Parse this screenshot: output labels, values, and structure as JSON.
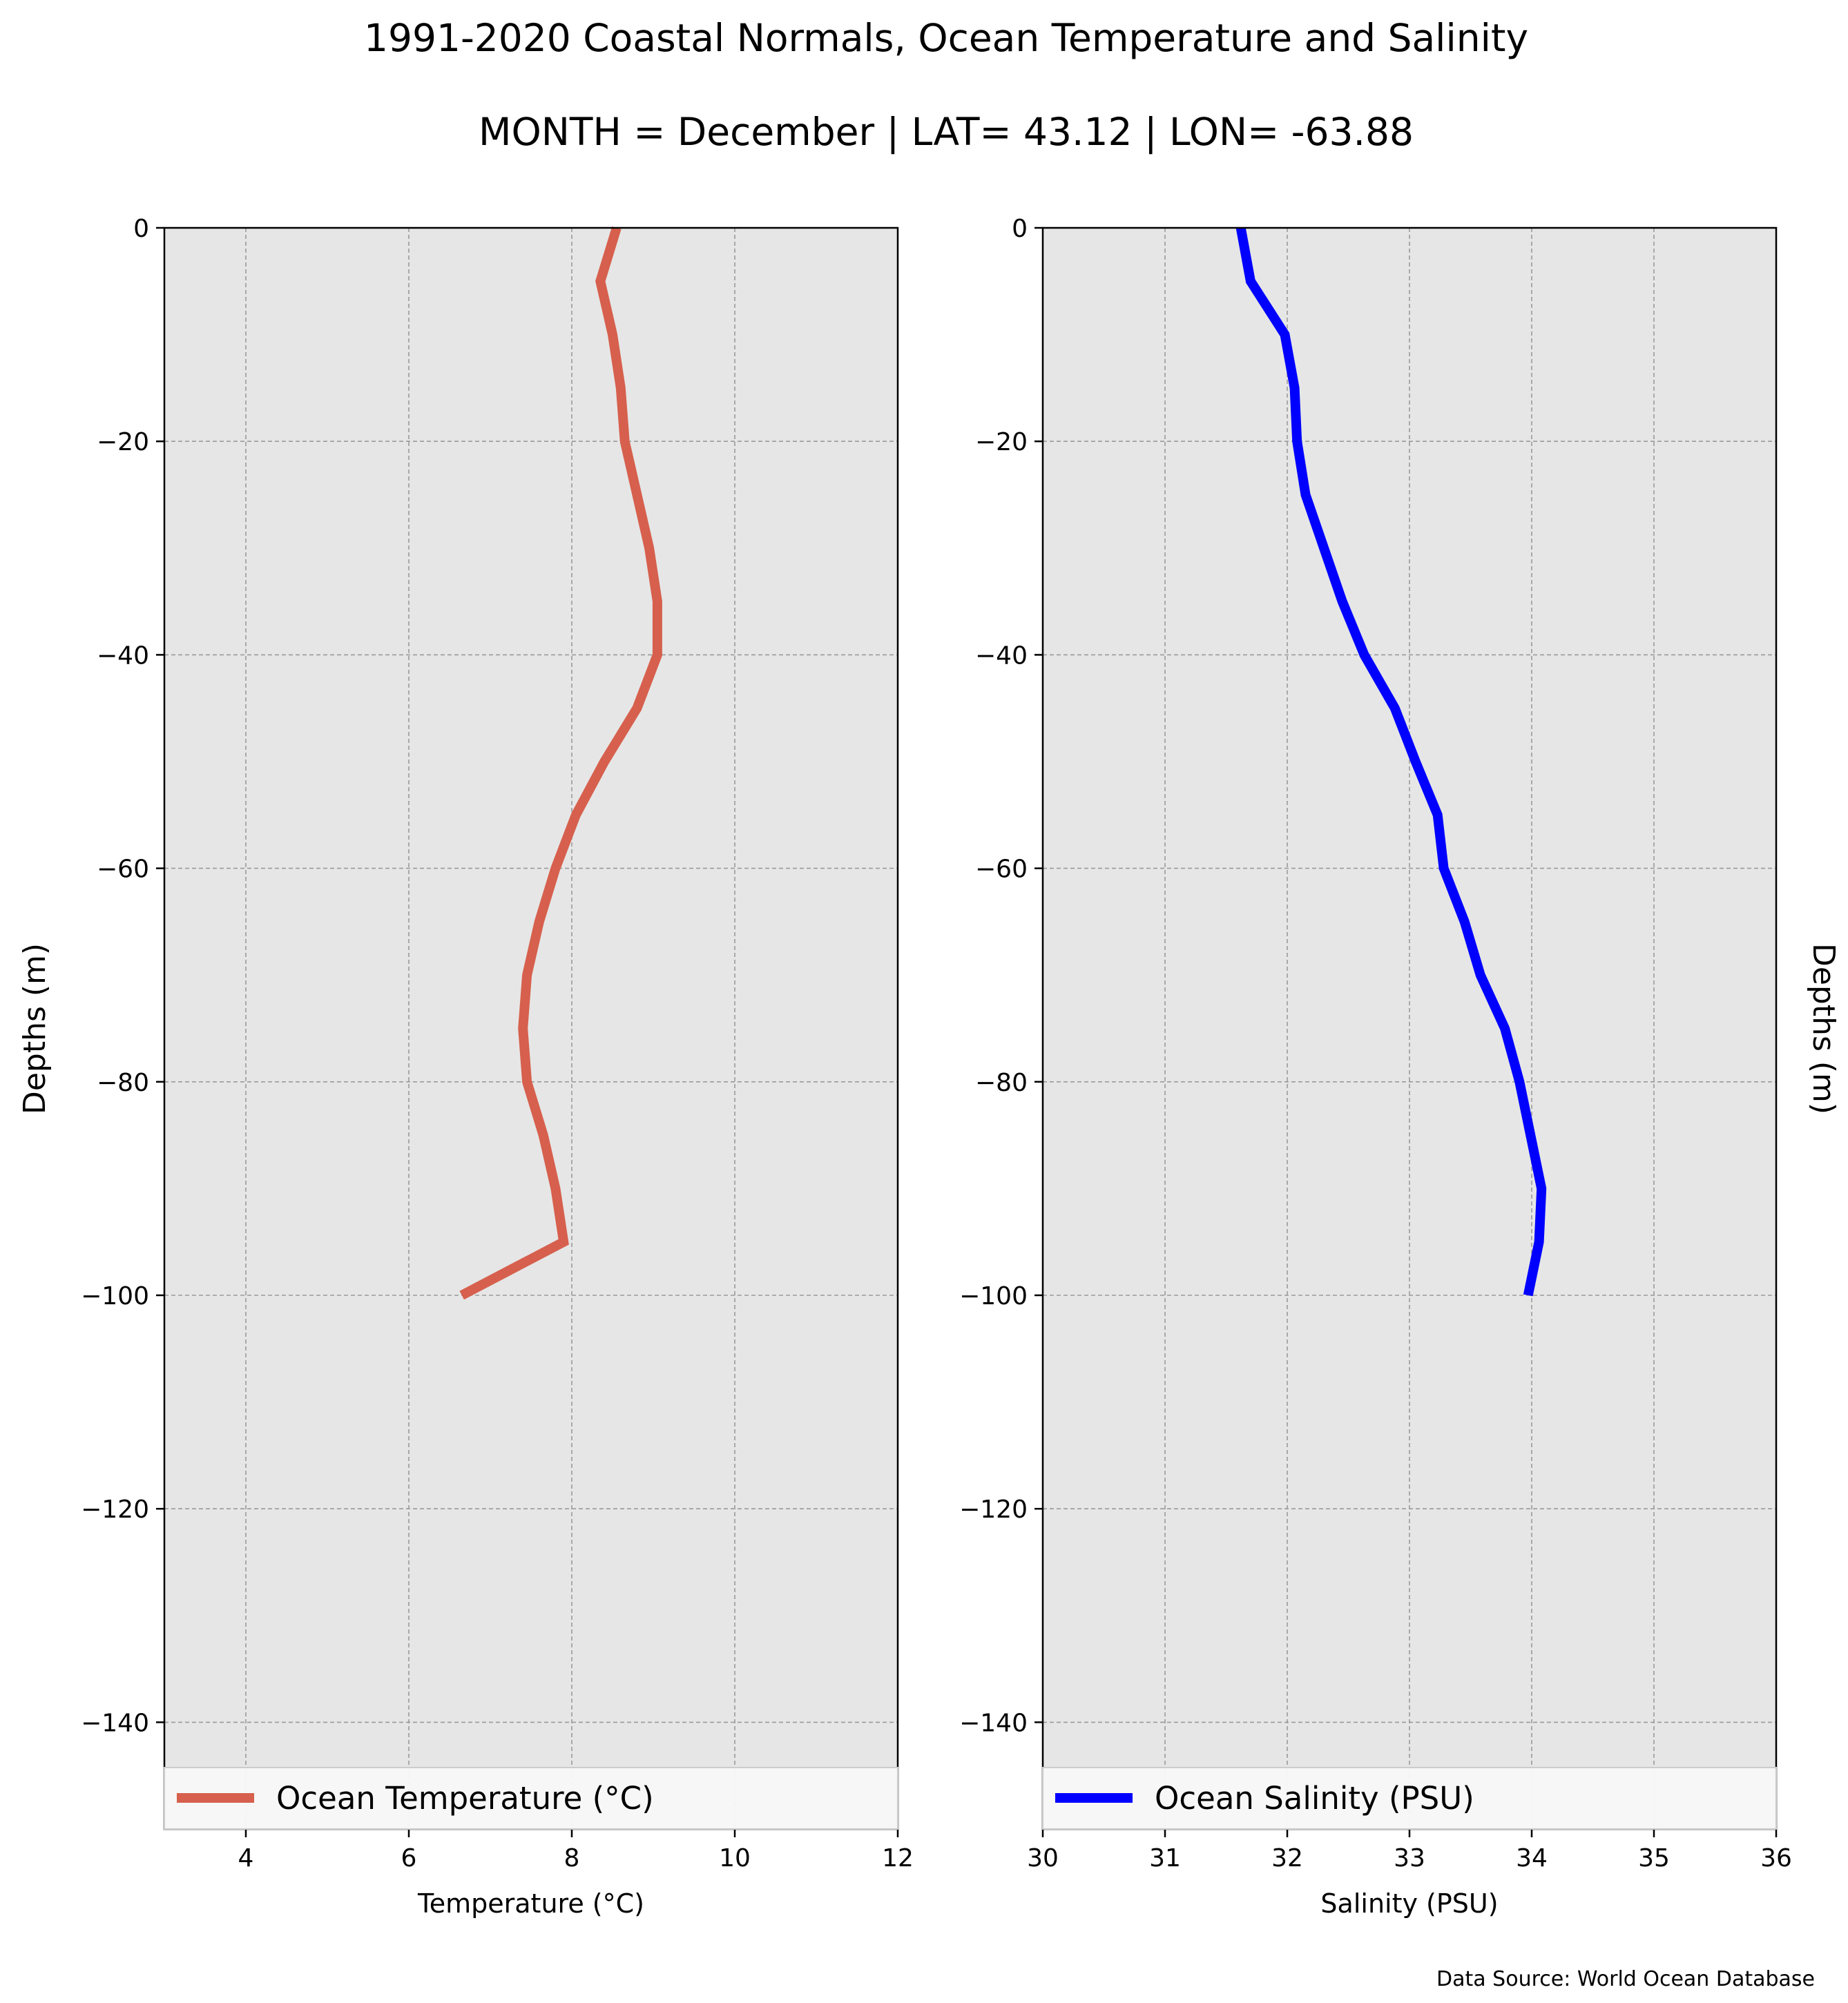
{
  "figure": {
    "title_line1": "1991-2020 Coastal Normals, Ocean Temperature and Salinity",
    "title_line2": "MONTH = December | LAT= 43.12 | LON= -63.88",
    "source_note": "Data Source: World Ocean Database"
  },
  "chart_data": [
    {
      "type": "line",
      "xlabel": "Temperature (°C)",
      "ylabel": "Depths (m)",
      "xlim": [
        3,
        12
      ],
      "ylim": [
        -150,
        0
      ],
      "xticks": [
        4,
        6,
        8,
        10,
        12
      ],
      "xtick_labels": [
        "4",
        "6",
        "8",
        "10",
        "12"
      ],
      "yticks": [
        0,
        -20,
        -40,
        -60,
        -80,
        -100,
        -120,
        -140
      ],
      "ytick_labels": [
        "0",
        "−20",
        "−40",
        "−60",
        "−80",
        "−100",
        "−120",
        "−140"
      ],
      "grid": true,
      "legend_position": "bottom",
      "series": [
        {
          "name": "Ocean Temperature (°C)",
          "color": "#d6604d",
          "x": [
            8.55,
            8.35,
            8.5,
            8.6,
            8.65,
            8.8,
            8.95,
            9.05,
            9.05,
            8.8,
            8.4,
            8.05,
            7.8,
            7.6,
            7.45,
            7.4,
            7.45,
            7.65,
            7.8,
            7.9,
            6.65
          ],
          "y": [
            0,
            -5,
            -10,
            -15,
            -20,
            -25,
            -30,
            -35,
            -40,
            -45,
            -50,
            -55,
            -60,
            -65,
            -70,
            -75,
            -80,
            -85,
            -90,
            -95,
            -100
          ]
        }
      ]
    },
    {
      "type": "line",
      "xlabel": "Salinity (PSU)",
      "ylabel": "Depths (m)",
      "xlim": [
        30,
        36
      ],
      "ylim": [
        -150,
        0
      ],
      "xticks": [
        30,
        31,
        32,
        33,
        34,
        35,
        36
      ],
      "xtick_labels": [
        "30",
        "31",
        "32",
        "33",
        "34",
        "35",
        "36"
      ],
      "yticks": [
        0,
        -20,
        -40,
        -60,
        -80,
        -100,
        -120,
        -140
      ],
      "ytick_labels": [
        "0",
        "−20",
        "−40",
        "−60",
        "−80",
        "−100",
        "−120",
        "−140"
      ],
      "grid": true,
      "legend_position": "bottom",
      "series": [
        {
          "name": "Ocean Salinity (PSU)",
          "color": "#0000ff",
          "x": [
            31.62,
            31.7,
            31.98,
            32.06,
            32.08,
            32.15,
            32.3,
            32.45,
            32.63,
            32.88,
            33.05,
            33.23,
            33.28,
            33.45,
            33.58,
            33.78,
            33.9,
            34.08,
            34.06,
            33.97
          ],
          "y": [
            0,
            -5,
            -10,
            -15,
            -20,
            -25,
            -30,
            -35,
            -40,
            -45,
            -50,
            -55,
            -60,
            -65,
            -70,
            -75,
            -80,
            -90,
            -95,
            -100
          ]
        }
      ]
    }
  ]
}
